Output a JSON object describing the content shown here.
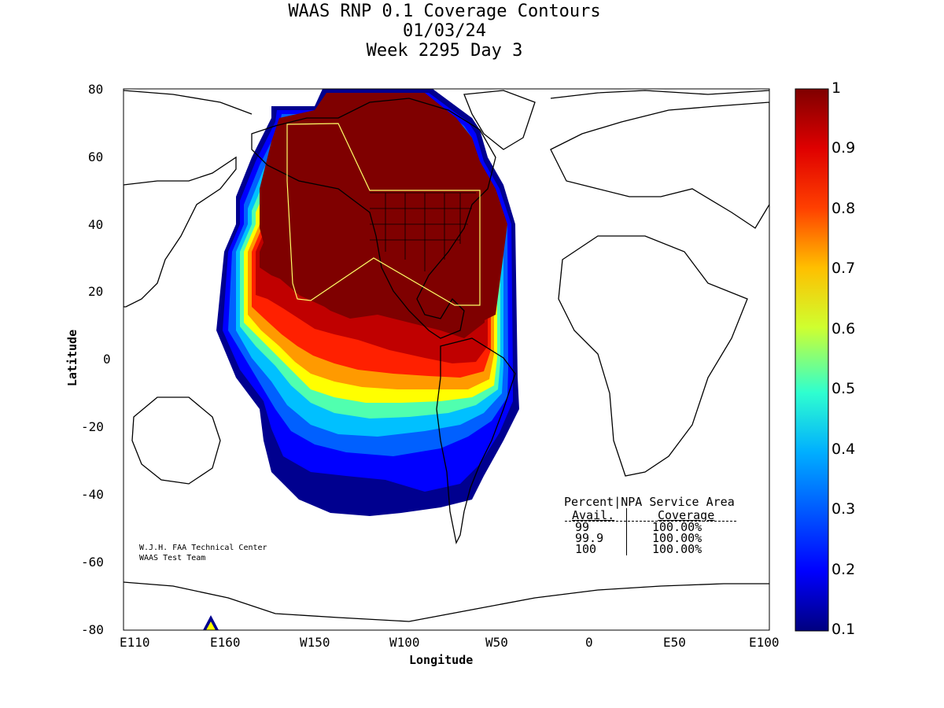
{
  "title": {
    "line1": "WAAS RNP 0.1 Coverage Contours",
    "line2": "01/03/24",
    "line3": "Week 2295 Day 3"
  },
  "axes": {
    "xlabel": "Longitude",
    "ylabel": "Latitude",
    "yticks": [
      "80",
      "60",
      "40",
      "20",
      "0",
      "-20",
      "-40",
      "-60",
      "-80"
    ],
    "xticks": [
      "E110",
      "E160",
      "W150",
      "W100",
      "W50",
      "0",
      "E50",
      "E100"
    ]
  },
  "colorbar": {
    "ticks": [
      "1",
      "0.9",
      "0.8",
      "0.7",
      "0.6",
      "0.5",
      "0.4",
      "0.3",
      "0.2",
      "0.1"
    ]
  },
  "credits": {
    "line1": "W.J.H. FAA Technical Center",
    "line2": "WAAS Test Team"
  },
  "stats_table": {
    "header1": "Percent|NPA Service Area",
    "header2a": "Avail.",
    "header2b": "Coverage",
    "rows": [
      {
        "avail": "99",
        "coverage": "100.00%"
      },
      {
        "avail": "99.9",
        "coverage": "100.00%"
      },
      {
        "avail": "100",
        "coverage": "100.00%"
      }
    ]
  },
  "colors": {
    "high": "#7f0000",
    "low": "#00007f"
  }
}
